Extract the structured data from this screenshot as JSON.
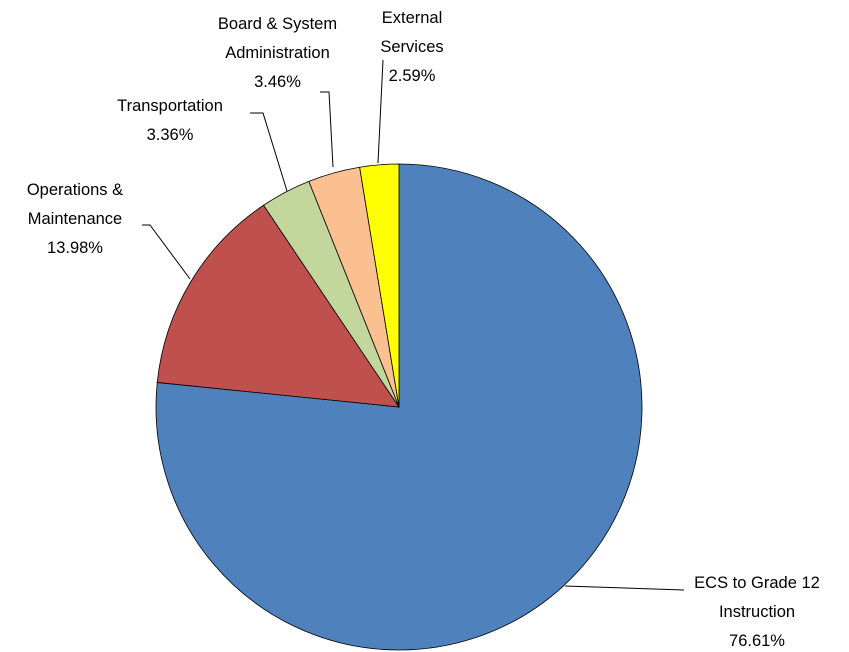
{
  "chart_data": {
    "type": "pie",
    "categories": [
      "ECS to Grade 12 Instruction",
      "Operations & Maintenance",
      "Transportation",
      "Board & System Administration",
      "External Services"
    ],
    "values": [
      76.61,
      13.98,
      3.36,
      3.46,
      2.59
    ],
    "value_labels": [
      "76.61%",
      "13.98%",
      "3.36%",
      "3.46%",
      "2.59%"
    ],
    "colors": [
      "#4f81bd",
      "#c0504d",
      "#c3d69b",
      "#fac090",
      "#ffff00"
    ]
  }
}
